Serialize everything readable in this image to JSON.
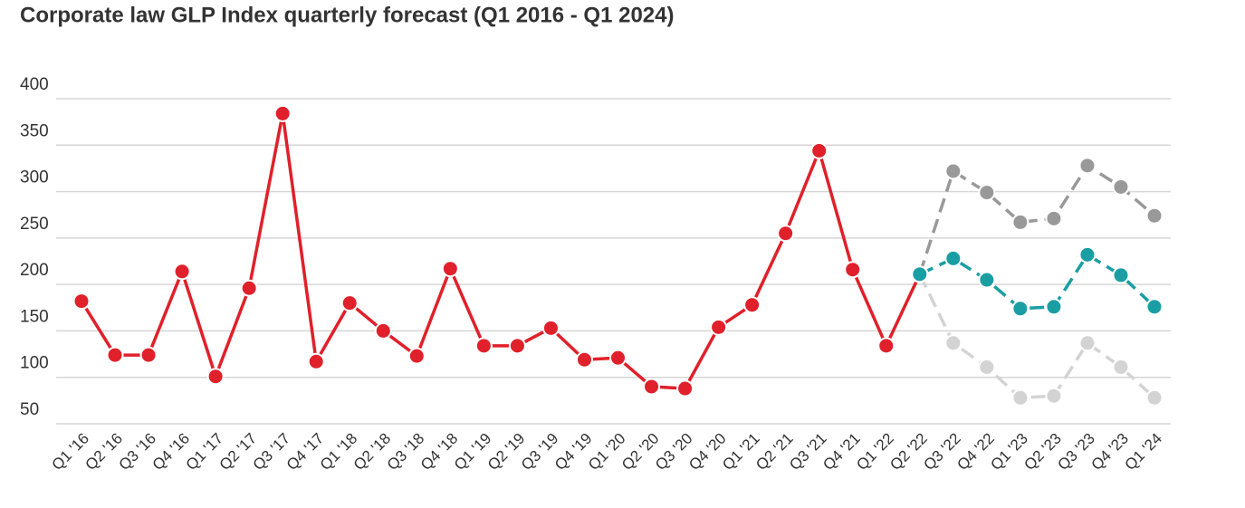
{
  "chart_data": {
    "type": "line",
    "title": "Corporate law GLP Index quarterly forecast (Q1 2016 - Q1 2024)",
    "categories": [
      "Q1 '16",
      "Q2 '16",
      "Q3 '16",
      "Q4 '16",
      "Q1 '17",
      "Q2 '17",
      "Q3 '17",
      "Q4 '17",
      "Q1 '18",
      "Q2 '18",
      "Q3 '18",
      "Q4 '18",
      "Q1 '19",
      "Q2 '19",
      "Q3 '19",
      "Q4 '19",
      "Q1 '20",
      "Q2 '20",
      "Q3 '20",
      "Q4 '20",
      "Q1 '21",
      "Q2 '21",
      "Q3 '21",
      "Q4 '21",
      "Q1 '22",
      "Q2 '22",
      "Q3 '22",
      "Q4 '22",
      "Q1 '23",
      "Q2 '23",
      "Q3 '23",
      "Q4 '23",
      "Q1 '24"
    ],
    "series": [
      {
        "color": "#e0202a",
        "dashed": false,
        "values": [
          182,
          124,
          124,
          214,
          101,
          196,
          384,
          117,
          180,
          150,
          123,
          217,
          134,
          134,
          153,
          119,
          121,
          90,
          88,
          154,
          178,
          255,
          344,
          216,
          134,
          211,
          null,
          null,
          null,
          null,
          null,
          null,
          null
        ]
      },
      {
        "color": "#999999",
        "dashed": true,
        "values": [
          null,
          null,
          null,
          null,
          null,
          null,
          null,
          null,
          null,
          null,
          null,
          null,
          null,
          null,
          null,
          null,
          null,
          null,
          null,
          null,
          null,
          null,
          null,
          null,
          null,
          211,
          322,
          299,
          267,
          271,
          328,
          305,
          274
        ]
      },
      {
        "color": "#d3d3d3",
        "dashed": true,
        "values": [
          null,
          null,
          null,
          null,
          null,
          null,
          null,
          null,
          null,
          null,
          null,
          null,
          null,
          null,
          null,
          null,
          null,
          null,
          null,
          null,
          null,
          null,
          null,
          null,
          null,
          211,
          137,
          111,
          78,
          80,
          137,
          111,
          78
        ]
      },
      {
        "color": "#1a9ea3",
        "dashed": true,
        "values": [
          null,
          null,
          null,
          null,
          null,
          null,
          null,
          null,
          null,
          null,
          null,
          null,
          null,
          null,
          null,
          null,
          null,
          null,
          null,
          null,
          null,
          null,
          null,
          null,
          null,
          211,
          228,
          205,
          174,
          176,
          232,
          210,
          176
        ]
      }
    ],
    "ylim": [
      50,
      400
    ],
    "yticks": [
      50,
      100,
      150,
      200,
      250,
      300,
      350,
      400
    ],
    "grid": true
  }
}
